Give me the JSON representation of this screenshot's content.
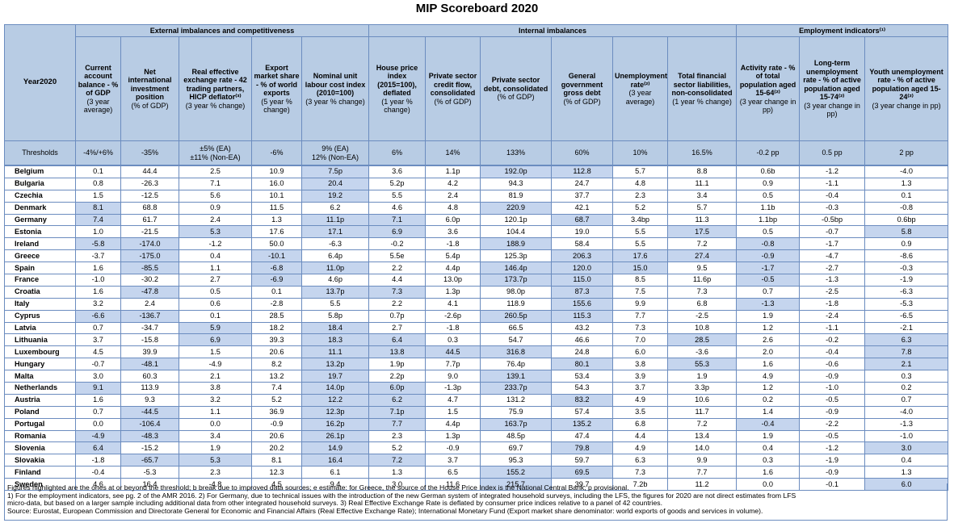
{
  "title": "MIP Scoreboard 2020",
  "groups": [
    "External imbalances and competitiveness",
    "Internal imbalances",
    "Employment indicators⁽¹⁾"
  ],
  "year_label": "Year2020",
  "columns": [
    {
      "name": "Current account balance - % of GDP",
      "sub": "(3 year average)"
    },
    {
      "name": "Net international investment position",
      "sub": "(% of GDP)"
    },
    {
      "name": "Real effective exchange rate - 42 trading partners, HICP deflator⁽³⁾",
      "sub": "(3 year % change)"
    },
    {
      "name": "Export market share - % of world exports",
      "sub": "(5 year % change)"
    },
    {
      "name": "Nominal unit labour cost index (2010=100)",
      "sub": "(3 year % change)"
    },
    {
      "name": "House price index (2015=100), deflated",
      "sub": "(1 year % change)"
    },
    {
      "name": "Private sector credit flow, consolidated",
      "sub": "(% of GDP)"
    },
    {
      "name": "Private sector debt, consolidated",
      "sub": "(% of GDP)"
    },
    {
      "name": "General government gross debt",
      "sub": "(% of GDP)"
    },
    {
      "name": "Unemployment rate⁽²⁾",
      "sub": "(3 year average)"
    },
    {
      "name": "Total financial sector liabilities, non-consolidated",
      "sub": "(1 year % change)"
    },
    {
      "name": "Activity rate - % of total population aged 15-64⁽²⁾",
      "sub": "(3 year change in pp)"
    },
    {
      "name": "Long-term unemployment rate - % of active population aged 15-74⁽²⁾",
      "sub": "(3 year change in pp)"
    },
    {
      "name": "Youth unemployment rate - % of active population aged 15-24⁽²⁾",
      "sub": "(3 year change in pp)"
    }
  ],
  "thresholds_label": "Thresholds",
  "thresholds": [
    "-4%/+6%",
    "-35%",
    "±5% (EA)\n±11% (Non-EA)",
    "-6%",
    "9% (EA)\n12% (Non-EA)",
    "6%",
    "14%",
    "133%",
    "60%",
    "10%",
    "16.5%",
    "-0.2 pp",
    "0.5 pp",
    "2 pp"
  ],
  "rows": [
    {
      "country": "Belgium",
      "values": [
        "0.1",
        "44.4",
        "2.5",
        "10.9",
        "7.5p",
        "3.6",
        "1.1p",
        "192.0p",
        "112.8",
        "5.7",
        "8.8",
        "0.6b",
        "-1.2",
        "-4.0"
      ],
      "hl": [
        4,
        7,
        8
      ]
    },
    {
      "country": "Bulgaria",
      "values": [
        "0.8",
        "-26.3",
        "7.1",
        "16.0",
        "20.4",
        "5.2p",
        "4.2",
        "94.3",
        "24.7",
        "4.8",
        "11.1",
        "0.9",
        "-1.1",
        "1.3"
      ],
      "hl": [
        4
      ]
    },
    {
      "country": "Czechia",
      "values": [
        "1.5",
        "-12.5",
        "5.6",
        "10.1",
        "19.2",
        "5.5",
        "2.4",
        "81.9",
        "37.7",
        "2.3",
        "3.4",
        "0.5",
        "-0.4",
        "0.1"
      ],
      "hl": [
        4
      ]
    },
    {
      "country": "Denmark",
      "values": [
        "8.1",
        "68.8",
        "0.9",
        "11.5",
        "6.2",
        "4.6",
        "4.8",
        "220.9",
        "42.1",
        "5.2",
        "5.7",
        "1.1b",
        "-0.3",
        "-0.8"
      ],
      "hl": [
        0,
        7
      ]
    },
    {
      "country": "Germany",
      "values": [
        "7.4",
        "61.7",
        "2.4",
        "1.3",
        "11.1p",
        "7.1",
        "6.0p",
        "120.1p",
        "68.7",
        "3.4bp",
        "11.3",
        "1.1bp",
        "-0.5bp",
        "0.6bp"
      ],
      "hl": [
        0,
        4,
        5,
        8
      ]
    },
    {
      "country": "Estonia",
      "values": [
        "1.0",
        "-21.5",
        "5.3",
        "17.6",
        "17.1",
        "6.9",
        "3.6",
        "104.4",
        "19.0",
        "5.5",
        "17.5",
        "0.5",
        "-0.7",
        "5.8"
      ],
      "hl": [
        2,
        4,
        5,
        10,
        13
      ]
    },
    {
      "country": "Ireland",
      "values": [
        "-5.8",
        "-174.0",
        "-1.2",
        "50.0",
        "-6.3",
        "-0.2",
        "-1.8",
        "188.9",
        "58.4",
        "5.5",
        "7.2",
        "-0.8",
        "-1.7",
        "0.9"
      ],
      "hl": [
        0,
        1,
        7,
        11
      ]
    },
    {
      "country": "Greece",
      "values": [
        "-3.7",
        "-175.0",
        "0.4",
        "-10.1",
        "6.4p",
        "5.5e",
        "5.4p",
        "125.3p",
        "206.3",
        "17.6",
        "27.4",
        "-0.9",
        "-4.7",
        "-8.6"
      ],
      "hl": [
        1,
        3,
        8,
        9,
        10,
        11
      ]
    },
    {
      "country": "Spain",
      "values": [
        "1.6",
        "-85.5",
        "1.1",
        "-6.8",
        "11.0p",
        "2.2",
        "4.4p",
        "146.4p",
        "120.0",
        "15.0",
        "9.5",
        "-1.7",
        "-2.7",
        "-0.3"
      ],
      "hl": [
        1,
        3,
        4,
        7,
        8,
        9,
        11
      ]
    },
    {
      "country": "France",
      "values": [
        "-1.0",
        "-30.2",
        "2.7",
        "-6.9",
        "4.6p",
        "4.4",
        "13.0p",
        "173.7p",
        "115.0",
        "8.5",
        "11.6p",
        "-0.5",
        "-1.3",
        "-1.9"
      ],
      "hl": [
        3,
        7,
        8,
        11
      ]
    },
    {
      "country": "Croatia",
      "values": [
        "1.6",
        "-47.8",
        "0.5",
        "0.1",
        "13.7p",
        "7.3",
        "1.3p",
        "98.0p",
        "87.3",
        "7.5",
        "7.3",
        "0.7",
        "-2.5",
        "-6.3"
      ],
      "hl": [
        1,
        4,
        5,
        8
      ]
    },
    {
      "country": "Italy",
      "values": [
        "3.2",
        "2.4",
        "0.6",
        "-2.8",
        "5.5",
        "2.2",
        "4.1",
        "118.9",
        "155.6",
        "9.9",
        "6.8",
        "-1.3",
        "-1.8",
        "-5.3"
      ],
      "hl": [
        8,
        11
      ]
    },
    {
      "country": "Cyprus",
      "values": [
        "-6.6",
        "-136.7",
        "0.1",
        "28.5",
        "5.8p",
        "0.7p",
        "-2.6p",
        "260.5p",
        "115.3",
        "7.7",
        "-2.5",
        "1.9",
        "-2.4",
        "-6.5"
      ],
      "hl": [
        0,
        1,
        7,
        8
      ]
    },
    {
      "country": "Latvia",
      "values": [
        "0.7",
        "-34.7",
        "5.9",
        "18.2",
        "18.4",
        "2.7",
        "-1.8",
        "66.5",
        "43.2",
        "7.3",
        "10.8",
        "1.2",
        "-1.1",
        "-2.1"
      ],
      "hl": [
        2,
        4
      ]
    },
    {
      "country": "Lithuania",
      "values": [
        "3.7",
        "-15.8",
        "6.9",
        "39.3",
        "18.3",
        "6.4",
        "0.3",
        "54.7",
        "46.6",
        "7.0",
        "28.5",
        "2.6",
        "-0.2",
        "6.3"
      ],
      "hl": [
        2,
        4,
        5,
        10,
        13
      ]
    },
    {
      "country": "Luxembourg",
      "values": [
        "4.5",
        "39.9",
        "1.5",
        "20.6",
        "11.1",
        "13.8",
        "44.5",
        "316.8",
        "24.8",
        "6.0",
        "-3.6",
        "2.0",
        "-0.4",
        "7.8"
      ],
      "hl": [
        4,
        5,
        6,
        7,
        13
      ]
    },
    {
      "country": "Hungary",
      "values": [
        "-0.7",
        "-48.1",
        "-4.9",
        "8.2",
        "13.2p",
        "1.9p",
        "7.7p",
        "76.4p",
        "80.1",
        "3.8",
        "55.3",
        "1.6",
        "-0.6",
        "2.1"
      ],
      "hl": [
        1,
        4,
        8,
        10,
        13
      ]
    },
    {
      "country": "Malta",
      "values": [
        "3.0",
        "60.3",
        "2.1",
        "13.2",
        "19.7",
        "2.2p",
        "9.0",
        "139.1",
        "53.4",
        "3.9",
        "1.9",
        "4.9",
        "-0.9",
        "0.3"
      ],
      "hl": [
        4,
        7
      ]
    },
    {
      "country": "Netherlands",
      "values": [
        "9.1",
        "113.9",
        "3.8",
        "7.4",
        "14.0p",
        "6.0p",
        "-1.3p",
        "233.7p",
        "54.3",
        "3.7",
        "3.3p",
        "1.2",
        "-1.0",
        "0.2"
      ],
      "hl": [
        0,
        4,
        5,
        7
      ]
    },
    {
      "country": "Austria",
      "values": [
        "1.6",
        "9.3",
        "3.2",
        "5.2",
        "12.2",
        "6.2",
        "4.7",
        "131.2",
        "83.2",
        "4.9",
        "10.6",
        "0.2",
        "-0.5",
        "0.7"
      ],
      "hl": [
        4,
        5,
        8
      ]
    },
    {
      "country": "Poland",
      "values": [
        "0.7",
        "-44.5",
        "1.1",
        "36.9",
        "12.3p",
        "7.1p",
        "1.5",
        "75.9",
        "57.4",
        "3.5",
        "11.7",
        "1.4",
        "-0.9",
        "-4.0"
      ],
      "hl": [
        1,
        4,
        5
      ]
    },
    {
      "country": "Portugal",
      "values": [
        "0.0",
        "-106.4",
        "0.0",
        "-0.9",
        "16.2p",
        "7.7",
        "4.4p",
        "163.7p",
        "135.2",
        "6.8",
        "7.2",
        "-0.4",
        "-2.2",
        "-1.3"
      ],
      "hl": [
        1,
        4,
        5,
        7,
        8,
        11
      ]
    },
    {
      "country": "Romania",
      "values": [
        "-4.9",
        "-48.3",
        "3.4",
        "20.6",
        "26.1p",
        "2.3",
        "1.3p",
        "48.5p",
        "47.4",
        "4.4",
        "13.4",
        "1.9",
        "-0.5",
        "-1.0"
      ],
      "hl": [
        0,
        1,
        4
      ]
    },
    {
      "country": "Slovenia",
      "values": [
        "6.4",
        "-15.2",
        "1.9",
        "20.2",
        "14.9",
        "5.2",
        "-0.9",
        "69.7",
        "79.8",
        "4.9",
        "14.0",
        "0.4",
        "-1.2",
        "3.0"
      ],
      "hl": [
        0,
        4,
        8,
        13
      ]
    },
    {
      "country": "Slovakia",
      "values": [
        "-1.8",
        "-65.7",
        "5.3",
        "8.1",
        "16.4",
        "7.2",
        "3.7",
        "95.3",
        "59.7",
        "6.3",
        "9.9",
        "0.3",
        "-1.9",
        "0.4"
      ],
      "hl": [
        1,
        2,
        4,
        5
      ]
    },
    {
      "country": "Finland",
      "values": [
        "-0.4",
        "-5.3",
        "2.3",
        "12.3",
        "6.1",
        "1.3",
        "6.5",
        "155.2",
        "69.5",
        "7.3",
        "7.7",
        "1.6",
        "-0.9",
        "1.3"
      ],
      "hl": [
        7,
        8
      ]
    },
    {
      "country": "Sweden",
      "values": [
        "4.6",
        "16.4",
        "-4.8",
        "4.5",
        "9.4",
        "3.0",
        "11.6",
        "215.7",
        "39.7",
        "7.2b",
        "11.2",
        "0.0",
        "-0.1",
        "6.0"
      ],
      "hl": [
        7,
        13
      ]
    }
  ],
  "notes": [
    "Figures highlighted are the ones at or beyond the threshold; b break due to improved data sources; e estimate: for Greece, the source of the House Price Index is the National Central Bank; p provisional.",
    "1)  For the employment indicators, see pg. 2 of the AMR 2016. 2) For Germany, due to technical issues with the introduction of the new German system of integrated household surveys, including the LFS, the figures for 2020 are not direct estimates from LFS",
    "micro-data, but based on a larger sample including additional data from other integrated household surveys. 3) Real Effective Exchange Rate is deflated by consumer price indices relative to a panel of 42 countries.",
    "Source: Eurostat, European Commission and Directorate General for Economic and Financial Affairs (Real Effective Exchange Rate); International Monetary Fund (Export market share denominator: world exports of goods and services in volume)."
  ]
}
